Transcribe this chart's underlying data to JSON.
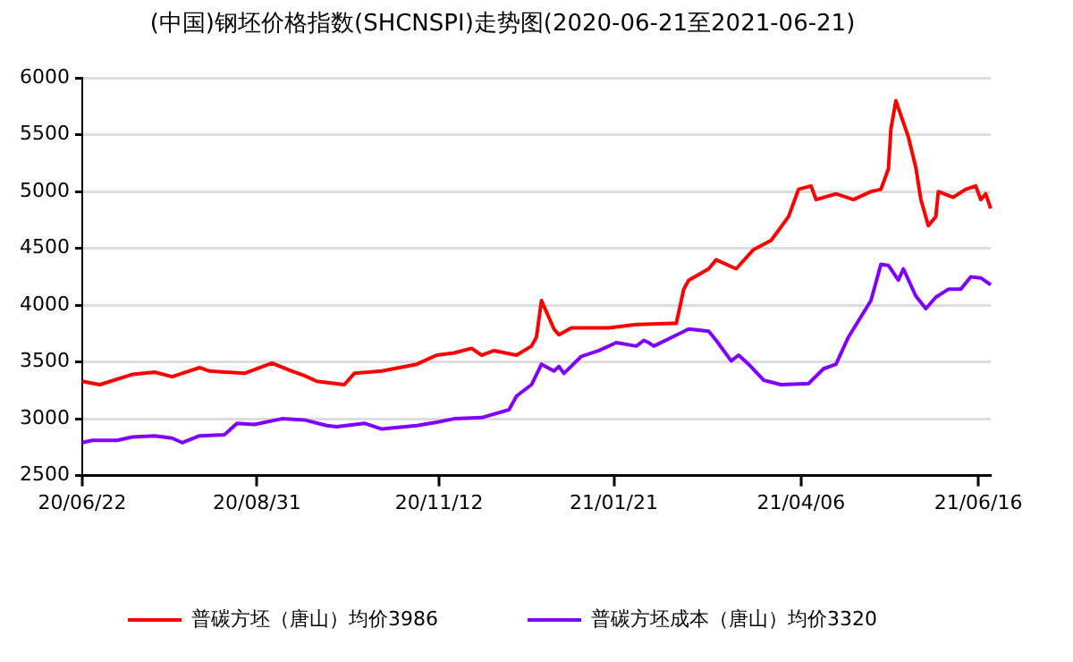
{
  "chart_data": {
    "type": "line",
    "title": "(中国)钢坯价格指数(SHCNSPI)走势图(2020-06-21至2021-06-21)",
    "xlim": [
      "2020-06-22",
      "2021-06-21"
    ],
    "xticks": [
      {
        "value": "2020-06-22",
        "label": "20/06/22"
      },
      {
        "value": "2020-08-31",
        "label": "20/08/31"
      },
      {
        "value": "2020-11-12",
        "label": "20/11/12"
      },
      {
        "value": "2021-01-21",
        "label": "21/01/21"
      },
      {
        "value": "2021-04-06",
        "label": "21/04/06"
      },
      {
        "value": "2021-06-16",
        "label": "21/06/16"
      }
    ],
    "ylim": [
      2500,
      6000
    ],
    "yticks": [
      2500,
      3000,
      3500,
      4000,
      4500,
      5000,
      5500,
      6000
    ],
    "grid": "y",
    "legend": "bottom",
    "marker": "none",
    "line_style": "solid",
    "series": [
      {
        "name": "普碳方坯（唐山）均价3986",
        "color": "#ff0000",
        "x": [
          "2020-06-22",
          "2020-06-29",
          "2020-07-12",
          "2020-07-21",
          "2020-07-28",
          "2020-08-01",
          "2020-08-08",
          "2020-08-12",
          "2020-08-26",
          "2020-09-06",
          "2020-09-14",
          "2020-09-19",
          "2020-09-24",
          "2020-10-05",
          "2020-10-09",
          "2020-10-20",
          "2020-11-03",
          "2020-11-11",
          "2020-11-18",
          "2020-11-25",
          "2020-11-29",
          "2020-12-04",
          "2020-12-13",
          "2020-12-19",
          "2020-12-21",
          "2020-12-23",
          "2020-12-28",
          "2020-12-30",
          "2021-01-04",
          "2021-01-19",
          "2021-01-30",
          "2021-02-13",
          "2021-02-15",
          "2021-02-18",
          "2021-02-20",
          "2021-02-28",
          "2021-03-03",
          "2021-03-11",
          "2021-03-18",
          "2021-03-25",
          "2021-04-01",
          "2021-04-05",
          "2021-04-10",
          "2021-04-12",
          "2021-04-20",
          "2021-04-27",
          "2021-05-04",
          "2021-05-08",
          "2021-05-11",
          "2021-05-12",
          "2021-05-14",
          "2021-05-19",
          "2021-05-22",
          "2021-05-24",
          "2021-05-27",
          "2021-05-30",
          "2021-05-31",
          "2021-06-06",
          "2021-06-11",
          "2021-06-15",
          "2021-06-17",
          "2021-06-19",
          "2021-06-21"
        ],
        "values": [
          3330,
          3300,
          3390,
          3410,
          3370,
          3400,
          3450,
          3420,
          3400,
          3490,
          3420,
          3380,
          3330,
          3300,
          3400,
          3420,
          3480,
          3560,
          3580,
          3620,
          3560,
          3600,
          3560,
          3640,
          3720,
          4040,
          3790,
          3740,
          3800,
          3800,
          3830,
          3840,
          3840,
          4140,
          4220,
          4320,
          4400,
          4320,
          4490,
          4570,
          4780,
          5020,
          5050,
          4930,
          4980,
          4930,
          5000,
          5020,
          5200,
          5550,
          5800,
          5480,
          5210,
          4930,
          4700,
          4780,
          5000,
          4950,
          5020,
          5050,
          4930,
          4980,
          4850
        ]
      },
      {
        "name": "普碳方坯成本（唐山）均价3320",
        "color": "#8000ff",
        "x": [
          "2020-06-22",
          "2020-06-26",
          "2020-07-06",
          "2020-07-12",
          "2020-07-21",
          "2020-07-28",
          "2020-08-01",
          "2020-08-08",
          "2020-08-18",
          "2020-08-23",
          "2020-08-30",
          "2020-09-10",
          "2020-09-19",
          "2020-09-28",
          "2020-10-02",
          "2020-10-13",
          "2020-10-20",
          "2020-11-03",
          "2020-11-11",
          "2020-11-18",
          "2020-11-29",
          "2020-12-10",
          "2020-12-13",
          "2020-12-19",
          "2020-12-23",
          "2020-12-28",
          "2020-12-30",
          "2021-01-01",
          "2021-01-08",
          "2021-01-15",
          "2021-01-22",
          "2021-01-30",
          "2021-02-02",
          "2021-02-04",
          "2021-02-06",
          "2021-02-20",
          "2021-02-28",
          "2021-03-03",
          "2021-03-09",
          "2021-03-12",
          "2021-03-16",
          "2021-03-22",
          "2021-03-29",
          "2021-04-09",
          "2021-04-15",
          "2021-04-20",
          "2021-04-25",
          "2021-05-04",
          "2021-05-08",
          "2021-05-11",
          "2021-05-15",
          "2021-05-17",
          "2021-05-22",
          "2021-05-26",
          "2021-05-30",
          "2021-06-04",
          "2021-06-09",
          "2021-06-13",
          "2021-06-17",
          "2021-06-21"
        ],
        "values": [
          2790,
          2810,
          2810,
          2840,
          2850,
          2830,
          2790,
          2850,
          2860,
          2960,
          2950,
          3000,
          2990,
          2940,
          2930,
          2960,
          2910,
          2940,
          2970,
          3000,
          3010,
          3080,
          3200,
          3300,
          3480,
          3420,
          3460,
          3400,
          3550,
          3600,
          3670,
          3640,
          3690,
          3670,
          3640,
          3790,
          3770,
          3690,
          3510,
          3560,
          3480,
          3340,
          3300,
          3310,
          3440,
          3480,
          3720,
          4040,
          4360,
          4350,
          4220,
          4320,
          4080,
          3970,
          4070,
          4140,
          4140,
          4250,
          4240,
          4180
        ]
      }
    ]
  }
}
